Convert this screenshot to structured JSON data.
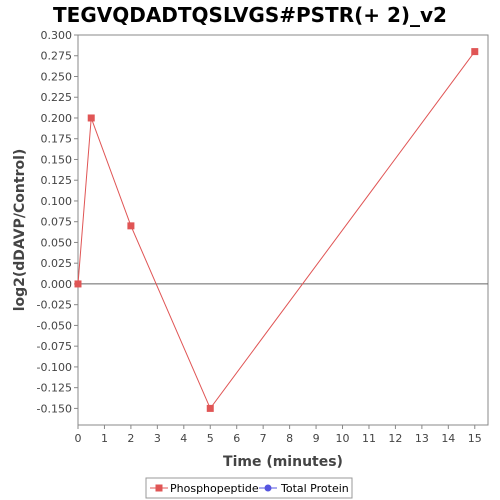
{
  "chart_data": {
    "type": "line",
    "title": "TEGVQDADTQSLVGS#PSTR(+ 2)_v2",
    "xlabel": "Time (minutes)",
    "ylabel": "log2(dDAVP/Control)",
    "xlim": [
      0,
      15.5
    ],
    "ylim": [
      -0.17,
      0.3
    ],
    "x_ticks": [
      "0",
      "1",
      "2",
      "3",
      "4",
      "5",
      "6",
      "7",
      "8",
      "9",
      "10",
      "11",
      "12",
      "13",
      "14",
      "15"
    ],
    "y_ticks": [
      "0.300",
      "0.275",
      "0.250",
      "0.225",
      "0.200",
      "0.175",
      "0.150",
      "0.125",
      "0.100",
      "0.075",
      "0.050",
      "0.025",
      "0.000",
      "-0.025",
      "-0.050",
      "-0.075",
      "-0.100",
      "-0.125",
      "-0.150"
    ],
    "grid": false,
    "zero_line": true,
    "legend_position": "bottom",
    "series": [
      {
        "name": "Phosphopeptide",
        "color": "#e05555",
        "marker": "square",
        "x": [
          0,
          0.5,
          2,
          5,
          15
        ],
        "y": [
          0.0,
          0.2,
          0.07,
          -0.15,
          0.28
        ]
      },
      {
        "name": "Total Protein",
        "color": "#5555e0",
        "marker": "circle",
        "x": [],
        "y": []
      }
    ]
  }
}
